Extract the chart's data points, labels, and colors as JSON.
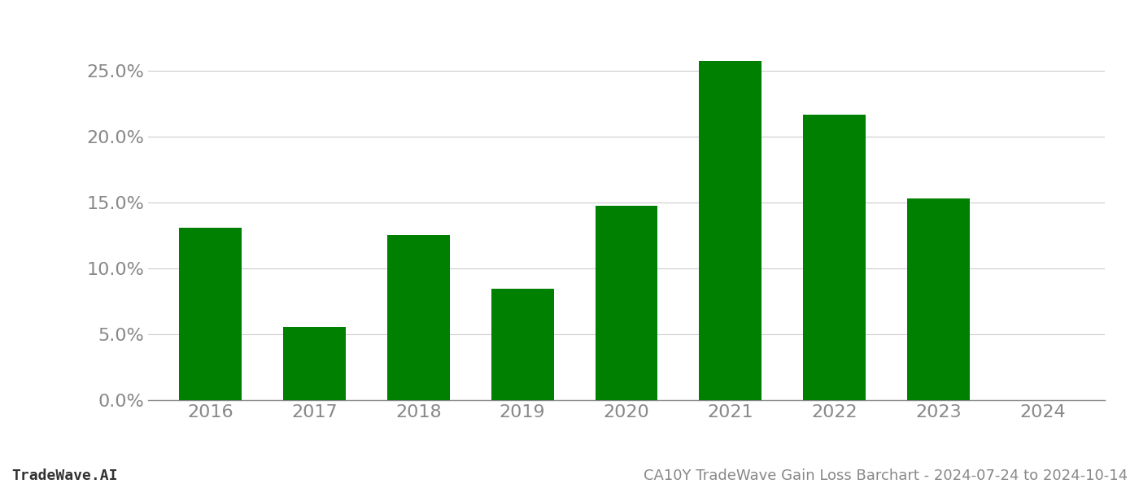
{
  "categories": [
    "2016",
    "2017",
    "2018",
    "2019",
    "2020",
    "2021",
    "2022",
    "2023",
    "2024"
  ],
  "values": [
    0.1305,
    0.0555,
    0.1255,
    0.0845,
    0.1475,
    0.2575,
    0.2165,
    0.153,
    null
  ],
  "bar_color": "#008000",
  "title": "CA10Y TradeWave Gain Loss Barchart - 2024-07-24 to 2024-10-14",
  "footer_left": "TradeWave.AI",
  "ylim": [
    0,
    0.285
  ],
  "yticks": [
    0.0,
    0.05,
    0.1,
    0.15,
    0.2,
    0.25
  ],
  "background_color": "#ffffff",
  "grid_color": "#cccccc",
  "bar_width": 0.6,
  "tick_fontsize": 16,
  "footer_fontsize": 13
}
